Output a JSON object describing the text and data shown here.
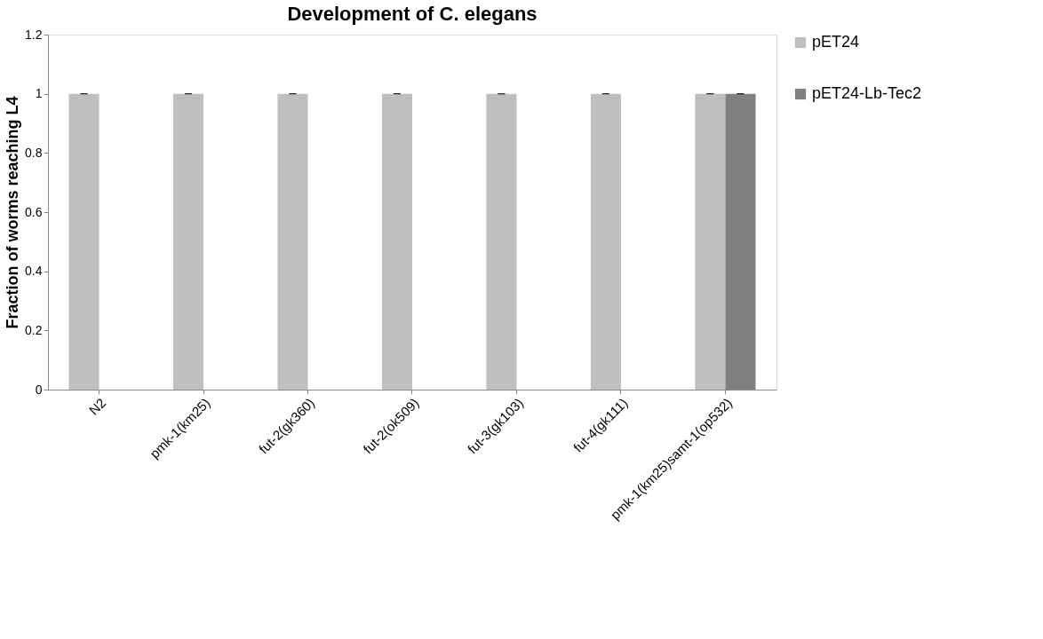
{
  "chart_data": {
    "type": "bar",
    "title": "Development of C. elegans",
    "ylabel": "Fraction of worms reaching L4",
    "categories": [
      "N2",
      "pmk-1(km25)",
      "fut-2(gk360)",
      "fut-2(ok509)",
      "fut-3(gk103)",
      "fut-4(gk111)",
      "pmk-1(km25)samt-1(op532)"
    ],
    "series": [
      {
        "name": "pET24",
        "color": "#bfbfbf",
        "values": [
          1,
          1,
          1,
          1,
          1,
          1,
          1
        ],
        "errors": [
          0,
          0,
          0,
          0,
          0,
          0,
          0
        ]
      },
      {
        "name": "pET24-Lb-Tec2",
        "color": "#808080",
        "values": [
          null,
          null,
          null,
          null,
          null,
          null,
          1
        ],
        "errors": [
          null,
          null,
          null,
          null,
          null,
          null,
          0
        ]
      }
    ],
    "ylim": [
      0,
      1.2
    ],
    "yticks": [
      0,
      0.2,
      0.4,
      0.6,
      0.8,
      1,
      1.2
    ],
    "grid": false,
    "legend": "right"
  }
}
